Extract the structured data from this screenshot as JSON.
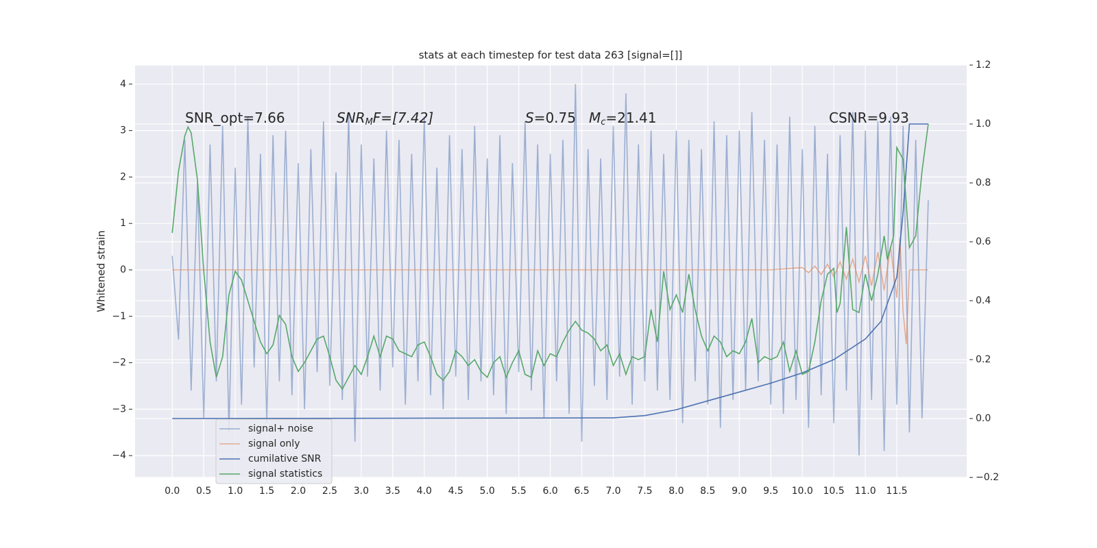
{
  "chart_data": {
    "type": "line",
    "title": "stats at each timestep for test data 263 [signal=[]]",
    "ylabel": "Whitened strain",
    "grid": true,
    "legend_loc": "lower left",
    "background": "#eaeaf2",
    "xlim": [
      -0.59,
      12.61
    ],
    "ylim": [
      -4.47,
      4.41
    ],
    "y2lim": [
      -0.2,
      1.2
    ],
    "xticks": [
      {
        "value": 0,
        "label": "0.0"
      },
      0.5,
      {
        "value": 1,
        "label": "1.0"
      },
      1.5,
      {
        "value": 2,
        "label": "2.0"
      },
      2.5,
      {
        "value": 3,
        "label": "3.0"
      },
      3.5,
      {
        "value": 4,
        "label": "4.0"
      },
      4.5,
      {
        "value": 5,
        "label": "5.0"
      },
      5.5,
      {
        "value": 6,
        "label": "6.0"
      },
      6.5,
      {
        "value": 7,
        "label": "7.0"
      },
      7.5,
      {
        "value": 8,
        "label": "8.0"
      },
      8.5,
      {
        "value": 9,
        "label": "9.0"
      },
      9.5,
      {
        "value": 10,
        "label": "10.0"
      },
      10.5,
      {
        "value": 11,
        "label": "11.0"
      },
      11.5
    ],
    "yticks": [
      {
        "value": -4,
        "label": "−4"
      },
      {
        "value": -3,
        "label": "−3"
      },
      {
        "value": -2,
        "label": "−2"
      },
      {
        "value": -1,
        "label": "−1"
      },
      0,
      1,
      2,
      3,
      4
    ],
    "y2ticks": [
      {
        "value": -0.2,
        "label": "−0.2"
      },
      {
        "value": 0,
        "label": "0.0"
      },
      0.2,
      0.4,
      0.6,
      0.8,
      {
        "value": 1,
        "label": "1.0"
      },
      1.2
    ],
    "annotations": [
      [
        "SNR_opt=7.66"
      ],
      [
        "SNR",
        "M",
        "F=[7.42]"
      ],
      [
        "S",
        "=0.75"
      ],
      [
        "M",
        "c",
        "=21.41"
      ],
      [
        "CSNR=9.93"
      ]
    ],
    "series": [
      {
        "name": "signal+ noise",
        "color": "#4c72b0",
        "alpha": 0.5,
        "x": [
          0,
          0.1,
          0.2,
          0.3,
          0.4,
          0.5,
          0.6,
          0.7,
          0.8,
          0.9,
          1,
          1.1,
          1.2,
          1.3,
          1.4,
          1.5,
          1.6,
          1.7,
          1.8,
          1.9,
          2,
          2.1,
          2.2,
          2.3,
          2.4,
          2.5,
          2.6,
          2.7,
          2.8,
          2.9,
          3,
          3.1,
          3.2,
          3.3,
          3.4,
          3.5,
          3.6,
          3.7,
          3.8,
          3.9,
          4,
          4.1,
          4.2,
          4.3,
          4.4,
          4.5,
          4.6,
          4.7,
          4.8,
          4.9,
          5,
          5.1,
          5.2,
          5.3,
          5.4,
          5.5,
          5.6,
          5.7,
          5.8,
          5.9,
          6,
          6.1,
          6.2,
          6.3,
          6.4,
          6.5,
          6.6,
          6.7,
          6.8,
          6.9,
          7,
          7.1,
          7.2,
          7.3,
          7.4,
          7.5,
          7.6,
          7.7,
          7.8,
          7.9,
          8,
          8.1,
          8.2,
          8.3,
          8.4,
          8.5,
          8.6,
          8.7,
          8.8,
          8.9,
          9,
          9.1,
          9.2,
          9.3,
          9.4,
          9.5,
          9.6,
          9.7,
          9.8,
          9.9,
          10,
          10.1,
          10.2,
          10.3,
          10.4,
          10.5,
          10.6,
          10.7,
          10.8,
          10.9,
          11,
          11.1,
          11.2,
          11.3,
          11.4,
          11.5,
          11.6,
          11.7,
          11.8,
          11.9,
          12
        ],
        "values": [
          0.3,
          -1.5,
          2.8,
          -2.6,
          1.9,
          -3.2,
          2.7,
          -2.4,
          3.1,
          -3.5,
          2.2,
          -2.9,
          3.3,
          -2.1,
          2.5,
          -3.3,
          2.9,
          -2.4,
          3.0,
          -2.7,
          2.3,
          -3.0,
          2.6,
          -2.2,
          3.2,
          -2.5,
          2.1,
          -2.8,
          3.4,
          -3.7,
          2.7,
          -2.3,
          2.4,
          -2.6,
          3.0,
          -2.1,
          2.8,
          -2.9,
          2.5,
          -2.4,
          3.3,
          -2.7,
          2.2,
          -3.0,
          2.9,
          -2.3,
          2.6,
          -2.8,
          3.1,
          -2.4,
          2.4,
          -2.7,
          2.9,
          -3.1,
          2.3,
          -2.2,
          3.2,
          -2.6,
          2.7,
          -3.2,
          2.5,
          -2.4,
          2.8,
          -3.1,
          4.0,
          -3.7,
          2.6,
          -2.5,
          2.4,
          -2.8,
          3.1,
          -2.3,
          3.8,
          -2.9,
          2.7,
          -2.4,
          3.0,
          -2.6,
          2.5,
          -2.8,
          3.0,
          -3.3,
          2.8,
          -2.4,
          2.6,
          -2.9,
          3.2,
          -3.4,
          2.9,
          -2.8,
          3.0,
          -2.6,
          3.4,
          -2.4,
          2.8,
          -2.9,
          2.7,
          -3.1,
          3.3,
          -2.8,
          2.6,
          -3.4,
          3.1,
          -2.7,
          2.5,
          -3.3,
          2.9,
          -2.6,
          3.4,
          -4.0,
          3.0,
          -2.8,
          3.2,
          -3.9,
          3.3,
          -2.9,
          3.1,
          -3.5,
          2.8,
          -3.2,
          1.5
        ]
      },
      {
        "name": "signal only",
        "color": "#dd8452",
        "alpha": 0.6,
        "x": [
          0,
          9.5,
          10,
          10.1,
          10.2,
          10.3,
          10.4,
          10.5,
          10.6,
          10.7,
          10.8,
          10.9,
          11,
          11.1,
          11.2,
          11.3,
          11.4,
          11.5,
          11.55,
          11.6,
          11.65,
          11.7,
          12
        ],
        "values": [
          0,
          0,
          0.05,
          -0.06,
          0.08,
          -0.1,
          0.12,
          -0.15,
          0.17,
          -0.2,
          0.23,
          -0.26,
          0.3,
          -0.34,
          0.38,
          -0.44,
          0.5,
          -0.6,
          0.7,
          -0.9,
          -1.6,
          0,
          0
        ]
      },
      {
        "name": "cumilative SNR",
        "color": "#4c72b0",
        "axis": "y2",
        "x": [
          0,
          7,
          7.5,
          8,
          8.5,
          9,
          9.5,
          10,
          10.5,
          11,
          11.25,
          11.5,
          11.6,
          11.7,
          12
        ],
        "values": [
          0,
          0.002,
          0.01,
          0.03,
          0.06,
          0.09,
          0.12,
          0.155,
          0.2,
          0.27,
          0.33,
          0.48,
          0.7,
          1.0,
          1.0
        ]
      },
      {
        "name": "signal statistics",
        "color": "#55a868",
        "axis": "y2",
        "x": [
          0,
          0.1,
          0.2,
          0.25,
          0.3,
          0.4,
          0.5,
          0.6,
          0.7,
          0.8,
          0.9,
          1,
          1.1,
          1.2,
          1.3,
          1.4,
          1.5,
          1.6,
          1.7,
          1.8,
          1.9,
          2,
          2.1,
          2.2,
          2.3,
          2.4,
          2.5,
          2.6,
          2.7,
          2.8,
          2.9,
          3,
          3.1,
          3.2,
          3.3,
          3.4,
          3.5,
          3.6,
          3.7,
          3.8,
          3.9,
          4,
          4.1,
          4.2,
          4.3,
          4.4,
          4.5,
          4.6,
          4.7,
          4.8,
          4.9,
          5,
          5.1,
          5.2,
          5.3,
          5.4,
          5.5,
          5.6,
          5.7,
          5.8,
          5.9,
          6,
          6.1,
          6.2,
          6.3,
          6.4,
          6.5,
          6.6,
          6.7,
          6.8,
          6.9,
          7,
          7.1,
          7.2,
          7.3,
          7.4,
          7.5,
          7.6,
          7.7,
          7.8,
          7.9,
          8,
          8.1,
          8.2,
          8.3,
          8.4,
          8.5,
          8.6,
          8.7,
          8.8,
          8.9,
          9,
          9.1,
          9.2,
          9.3,
          9.4,
          9.5,
          9.6,
          9.7,
          9.8,
          9.9,
          10,
          10.1,
          10.2,
          10.3,
          10.4,
          10.5,
          10.55,
          10.6,
          10.7,
          10.8,
          10.9,
          11,
          11.1,
          11.2,
          11.3,
          11.35,
          11.45,
          11.5,
          11.6,
          11.7,
          11.8,
          11.9,
          12
        ],
        "values": [
          0.63,
          0.84,
          0.96,
          0.99,
          0.97,
          0.81,
          0.5,
          0.26,
          0.14,
          0.21,
          0.42,
          0.5,
          0.47,
          0.4,
          0.33,
          0.26,
          0.22,
          0.25,
          0.35,
          0.32,
          0.21,
          0.16,
          0.19,
          0.23,
          0.27,
          0.28,
          0.21,
          0.13,
          0.1,
          0.14,
          0.18,
          0.15,
          0.21,
          0.28,
          0.21,
          0.28,
          0.27,
          0.23,
          0.22,
          0.21,
          0.25,
          0.26,
          0.21,
          0.15,
          0.13,
          0.16,
          0.23,
          0.21,
          0.18,
          0.2,
          0.16,
          0.14,
          0.19,
          0.21,
          0.14,
          0.19,
          0.23,
          0.15,
          0.14,
          0.23,
          0.18,
          0.22,
          0.21,
          0.26,
          0.3,
          0.33,
          0.3,
          0.29,
          0.27,
          0.23,
          0.25,
          0.18,
          0.22,
          0.15,
          0.21,
          0.2,
          0.21,
          0.37,
          0.26,
          0.5,
          0.37,
          0.42,
          0.36,
          0.49,
          0.37,
          0.28,
          0.23,
          0.28,
          0.26,
          0.21,
          0.23,
          0.22,
          0.26,
          0.34,
          0.19,
          0.21,
          0.2,
          0.21,
          0.26,
          0.16,
          0.23,
          0.15,
          0.16,
          0.26,
          0.4,
          0.49,
          0.51,
          0.36,
          0.39,
          0.65,
          0.37,
          0.36,
          0.49,
          0.4,
          0.49,
          0.62,
          0.54,
          0.62,
          0.92,
          0.88,
          0.58,
          0.62,
          0.84,
          1.0
        ]
      }
    ]
  }
}
